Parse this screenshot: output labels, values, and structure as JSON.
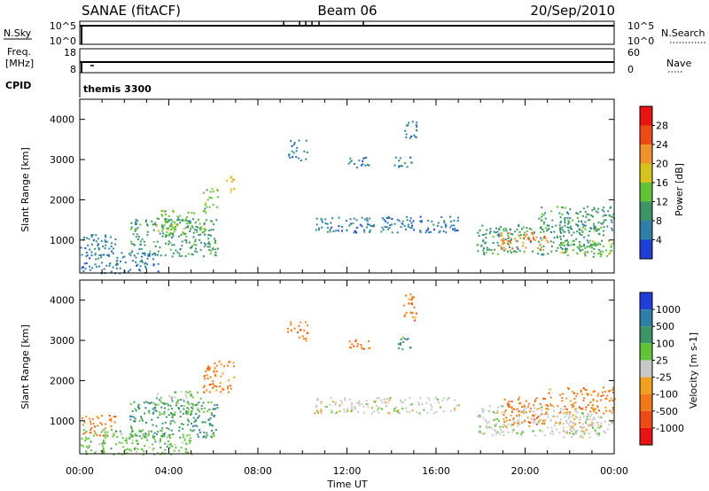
{
  "header": {
    "station": "SANAE (fitACF)",
    "beam": "Beam 06",
    "date": "20/Sep/2010"
  },
  "status_panels": {
    "nsky_label": "N.Sky",
    "nsearch_label": "N.Search",
    "nsky_ticks": [
      "10^5",
      "10^0"
    ],
    "nsearch_ticks": [
      "10^5",
      "10^0"
    ],
    "freq_label": "Freq.",
    "freq_unit": "[MHz]",
    "freq_ticks": [
      "18",
      "8"
    ],
    "nave_label": "Nave",
    "nave_ticks": [
      "60",
      "0"
    ],
    "cpid_label": "CPID",
    "cpid_value": "themis 3300"
  },
  "chart_data": [
    {
      "type": "heatmap",
      "ylabel": "Slant Range [km]",
      "ylim": [
        180,
        4500
      ],
      "yticks": [
        1000,
        2000,
        3000,
        4000
      ],
      "xlim": [
        0,
        24
      ],
      "colorbar": {
        "label": "Power [dB]",
        "ticks": [
          "4",
          "8",
          "12",
          "16",
          "20",
          "24",
          "28"
        ],
        "colors": [
          "#1f3fd6",
          "#2f7fa8",
          "#3d9468",
          "#62c23a",
          "#d4c21e",
          "#f0922a",
          "#ee4a16",
          "#e81414"
        ]
      },
      "regions": [
        {
          "t0": 0.0,
          "t1": 1.6,
          "r0": 650,
          "r1": 1150,
          "level": 1
        },
        {
          "t0": 2.2,
          "t1": 6.2,
          "r0": 600,
          "r1": 1550,
          "level": 2
        },
        {
          "t0": 3.4,
          "t1": 5.6,
          "r0": 1150,
          "r1": 1750,
          "level": 3
        },
        {
          "t0": 5.5,
          "t1": 6.2,
          "r0": 1700,
          "r1": 2300,
          "level": 3
        },
        {
          "t0": 0.0,
          "t1": 3.5,
          "r0": 180,
          "r1": 700,
          "level": 1
        },
        {
          "t0": 6.5,
          "t1": 6.9,
          "r0": 2200,
          "r1": 2600,
          "level": 4
        },
        {
          "t0": 9.3,
          "t1": 10.2,
          "r0": 3000,
          "r1": 3500,
          "level": 1
        },
        {
          "t0": 12.0,
          "t1": 13.0,
          "r0": 2800,
          "r1": 3100,
          "level": 1
        },
        {
          "t0": 14.1,
          "t1": 14.9,
          "r0": 2800,
          "r1": 3100,
          "level": 1
        },
        {
          "t0": 14.5,
          "t1": 15.1,
          "r0": 3500,
          "r1": 4000,
          "level": 1
        },
        {
          "t0": 10.5,
          "t1": 17.0,
          "r0": 1200,
          "r1": 1600,
          "level": 1
        },
        {
          "t0": 17.8,
          "t1": 23.5,
          "r0": 650,
          "r1": 1400,
          "level": 2
        },
        {
          "t0": 18.8,
          "t1": 21.0,
          "r0": 750,
          "r1": 1200,
          "level": 5
        },
        {
          "t0": 20.5,
          "t1": 24.0,
          "r0": 1200,
          "r1": 1850,
          "level": 2
        },
        {
          "t0": 21.5,
          "t1": 24.0,
          "r0": 600,
          "r1": 1000,
          "level": 3
        }
      ]
    },
    {
      "type": "heatmap",
      "ylabel": "Slant Range [km]",
      "ylim": [
        180,
        4500
      ],
      "yticks": [
        1000,
        2000,
        3000,
        4000
      ],
      "xlim": [
        0,
        24
      ],
      "colorbar": {
        "label": "Velocity [m s-1]",
        "ticks": [
          "1000",
          "500",
          "100",
          "25",
          "-25",
          "-100",
          "-500",
          "-1000"
        ],
        "colors": [
          "#1f3fd6",
          "#2f7fa8",
          "#3d9468",
          "#62c23a",
          "#c8c8c8",
          "#f0a020",
          "#f07a18",
          "#ee4a16",
          "#e81414"
        ]
      },
      "regions": [
        {
          "t0": 0.0,
          "t1": 1.6,
          "r0": 650,
          "r1": 1150,
          "level": 6
        },
        {
          "t0": 2.2,
          "t1": 6.2,
          "r0": 600,
          "r1": 1550,
          "level": 2
        },
        {
          "t0": 3.4,
          "t1": 5.6,
          "r0": 1150,
          "r1": 1750,
          "level": 3
        },
        {
          "t0": 5.5,
          "t1": 6.9,
          "r0": 1700,
          "r1": 2500,
          "level": 6
        },
        {
          "t0": 0.0,
          "t1": 5.0,
          "r0": 180,
          "r1": 800,
          "level": 3
        },
        {
          "t0": 9.3,
          "t1": 10.2,
          "r0": 3000,
          "r1": 3500,
          "level": 6
        },
        {
          "t0": 12.0,
          "t1": 13.0,
          "r0": 2800,
          "r1": 3100,
          "level": 6
        },
        {
          "t0": 14.1,
          "t1": 14.9,
          "r0": 2800,
          "r1": 3100,
          "level": 2
        },
        {
          "t0": 14.5,
          "t1": 15.1,
          "r0": 3500,
          "r1": 4200,
          "level": 6
        },
        {
          "t0": 10.5,
          "t1": 17.0,
          "r0": 1200,
          "r1": 1600,
          "level": 4
        },
        {
          "t0": 17.8,
          "t1": 23.5,
          "r0": 650,
          "r1": 1400,
          "level": 4
        },
        {
          "t0": 19.0,
          "t1": 21.0,
          "r0": 900,
          "r1": 1600,
          "level": 6
        },
        {
          "t0": 21.0,
          "t1": 24.0,
          "r0": 1200,
          "r1": 1850,
          "level": 6
        },
        {
          "t0": 21.5,
          "t1": 24.0,
          "r0": 600,
          "r1": 1000,
          "level": 4
        }
      ]
    }
  ],
  "xaxis": {
    "label": "Time UT",
    "ticks": [
      "00:00",
      "04:00",
      "08:00",
      "12:00",
      "16:00",
      "20:00",
      "00:00"
    ]
  }
}
